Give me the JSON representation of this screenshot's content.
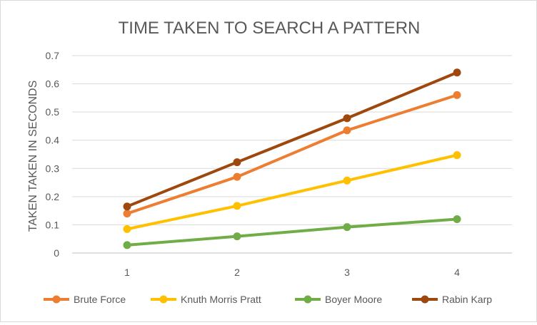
{
  "chart_data": {
    "type": "line",
    "title": "TIME TAKEN TO SEARCH A PATTERN",
    "xlabel": "",
    "ylabel": "TAKEN TAKEN IN SECONDS",
    "categories": [
      "1",
      "2",
      "3",
      "4"
    ],
    "y_ticks": [
      "0",
      "0.1",
      "0.2",
      "0.3",
      "0.4",
      "0.5",
      "0.6",
      "0.7"
    ],
    "ylim": [
      0,
      0.7
    ],
    "grid": true,
    "legend_position": "bottom",
    "series": [
      {
        "name": "Brute Force",
        "color": "#ED7D31",
        "values": [
          0.14,
          0.27,
          0.435,
          0.56
        ]
      },
      {
        "name": "Knuth Morris Pratt",
        "color": "#FFC000",
        "values": [
          0.085,
          0.167,
          0.257,
          0.347
        ]
      },
      {
        "name": "Boyer Moore",
        "color": "#70AD47",
        "values": [
          0.028,
          0.059,
          0.092,
          0.12
        ]
      },
      {
        "name": "Rabin Karp",
        "color": "#9E480E",
        "values": [
          0.165,
          0.322,
          0.478,
          0.64
        ]
      }
    ]
  }
}
